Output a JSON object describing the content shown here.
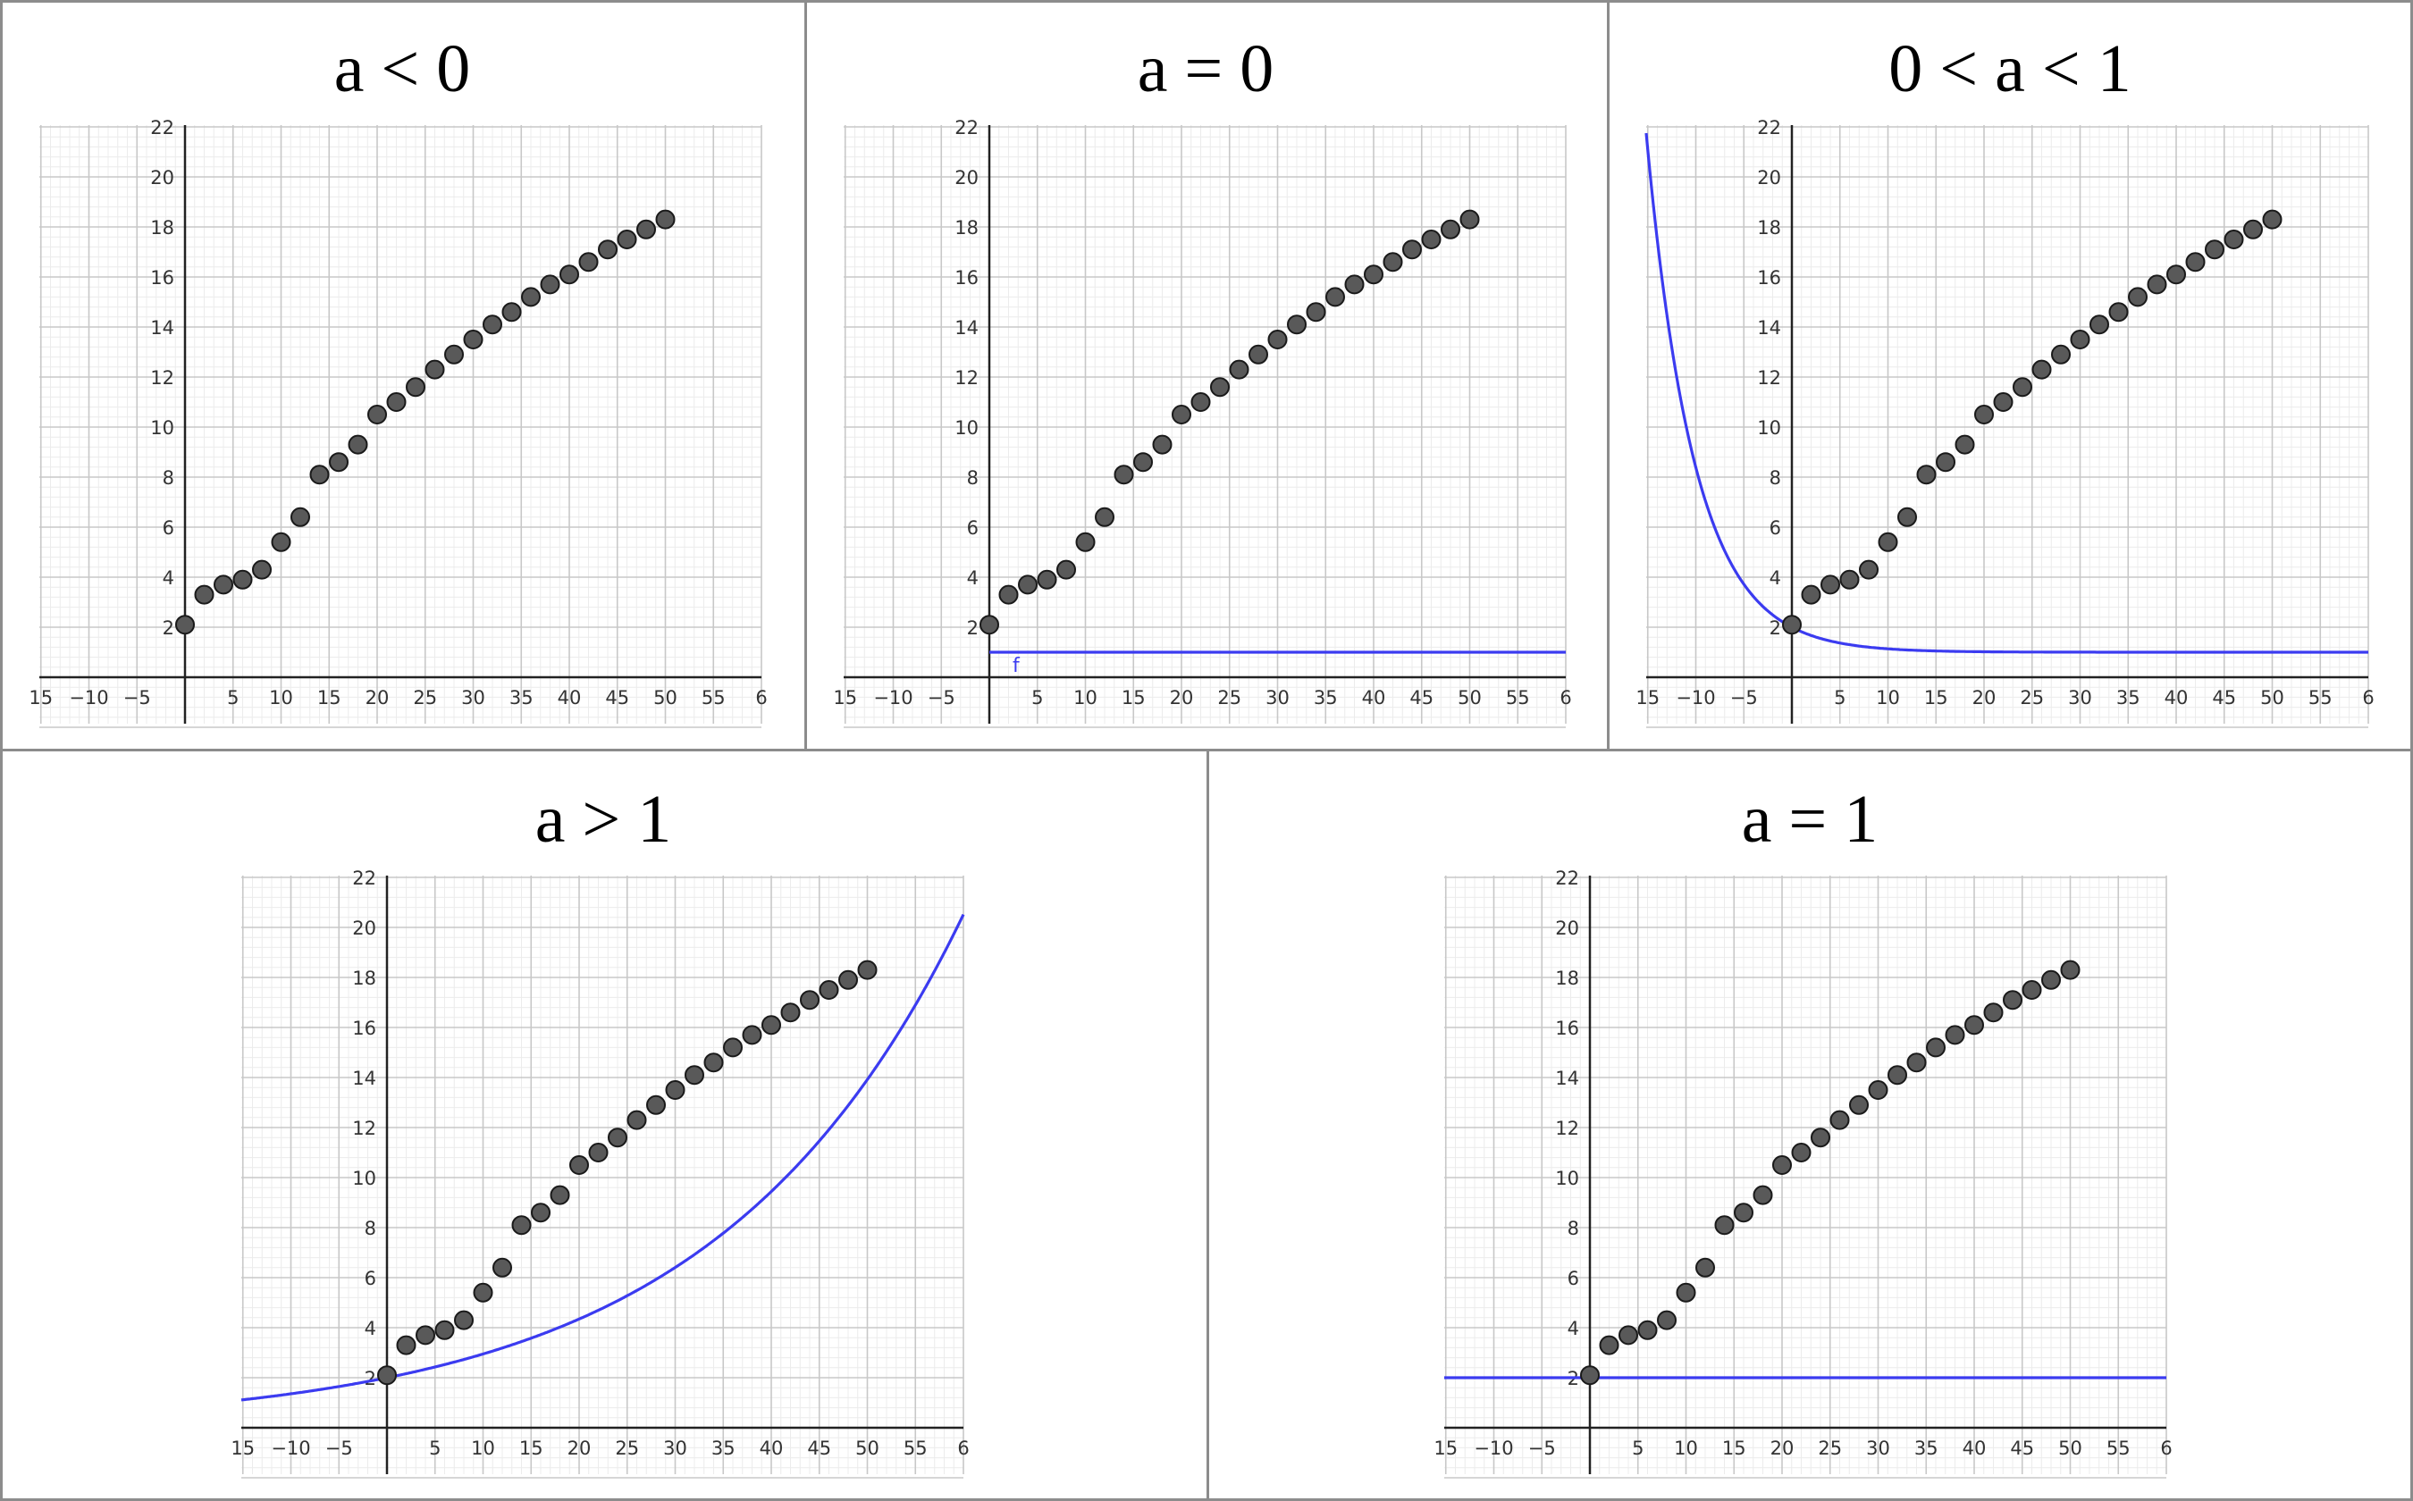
{
  "panels": [
    {
      "title": "a < 0",
      "chart_data": {
        "type": "scatter",
        "title": "a < 0",
        "xlim": [
          -15,
          60
        ],
        "ylim": [
          -2,
          22
        ],
        "x_ticks": [
          "15",
          "−10",
          "−5",
          "5",
          "10",
          "15",
          "20",
          "25",
          "30",
          "35",
          "40",
          "45",
          "50",
          "55",
          "6"
        ],
        "y_ticks": [
          "2",
          "4",
          "6",
          "8",
          "10",
          "12",
          "14",
          "16",
          "18",
          "20",
          "22"
        ],
        "grid": true,
        "points": {
          "x": [
            0,
            2,
            4,
            6,
            8,
            10,
            12,
            14,
            16,
            18,
            20,
            22,
            24,
            26,
            28,
            30,
            32,
            34,
            36,
            38,
            40,
            42,
            44,
            46,
            48,
            50
          ],
          "y": [
            2.1,
            3.3,
            3.7,
            3.9,
            4.3,
            5.4,
            6.4,
            8.1,
            8.6,
            9.3,
            10.5,
            11.0,
            11.6,
            12.3,
            12.9,
            13.5,
            14.1,
            14.6,
            15.2,
            15.7,
            16.1,
            16.6,
            17.1,
            17.5,
            17.9,
            18.3
          ]
        },
        "curve": null
      }
    },
    {
      "title": "a = 0",
      "chart_data": {
        "type": "scatter",
        "title": "a = 0",
        "xlim": [
          -15,
          60
        ],
        "ylim": [
          -2,
          22
        ],
        "x_ticks": [
          "15",
          "−10",
          "−5",
          "5",
          "10",
          "15",
          "20",
          "25",
          "30",
          "35",
          "40",
          "45",
          "50",
          "55",
          "6"
        ],
        "y_ticks": [
          "2",
          "4",
          "6",
          "8",
          "10",
          "12",
          "14",
          "16",
          "18",
          "20",
          "22"
        ],
        "grid": true,
        "points": {
          "x": [
            0,
            2,
            4,
            6,
            8,
            10,
            12,
            14,
            16,
            18,
            20,
            22,
            24,
            26,
            28,
            30,
            32,
            34,
            36,
            38,
            40,
            42,
            44,
            46,
            48,
            50
          ],
          "y": [
            2.1,
            3.3,
            3.7,
            3.9,
            4.3,
            5.4,
            6.4,
            8.1,
            8.6,
            9.3,
            10.5,
            11.0,
            11.6,
            12.3,
            12.9,
            13.5,
            14.1,
            14.6,
            15.2,
            15.7,
            16.1,
            16.6,
            17.1,
            17.5,
            17.9,
            18.3
          ]
        },
        "curve": {
          "kind": "constant",
          "value": 1.0,
          "x_from": 0,
          "label": "f",
          "color": "#3b3bf0"
        }
      }
    },
    {
      "title": "0 < a < 1",
      "chart_data": {
        "type": "scatter",
        "title": "0 < a < 1",
        "xlim": [
          -15,
          60
        ],
        "ylim": [
          -2,
          22
        ],
        "x_ticks": [
          "15",
          "−10",
          "−5",
          "5",
          "10",
          "15",
          "20",
          "25",
          "30",
          "35",
          "40",
          "45",
          "50",
          "55",
          "6"
        ],
        "y_ticks": [
          "2",
          "4",
          "6",
          "8",
          "10",
          "12",
          "14",
          "16",
          "18",
          "20",
          "22"
        ],
        "grid": true,
        "points": {
          "x": [
            0,
            2,
            4,
            6,
            8,
            10,
            12,
            14,
            16,
            18,
            20,
            22,
            24,
            26,
            28,
            30,
            32,
            34,
            36,
            38,
            40,
            42,
            44,
            46,
            48,
            50
          ],
          "y": [
            2.1,
            3.3,
            3.7,
            3.9,
            4.3,
            5.4,
            6.4,
            8.1,
            8.6,
            9.3,
            10.5,
            11.0,
            11.6,
            12.3,
            12.9,
            13.5,
            14.1,
            14.6,
            15.2,
            15.7,
            16.1,
            16.6,
            17.1,
            17.5,
            17.9,
            18.3
          ]
        },
        "curve": {
          "kind": "exponential",
          "asymptote": 1.0,
          "y0": 2.0,
          "rate": -0.2,
          "color": "#3b3bf0"
        }
      }
    },
    {
      "title": "a > 1",
      "chart_data": {
        "type": "scatter",
        "title": "a > 1",
        "xlim": [
          -15,
          60
        ],
        "ylim": [
          -2,
          22
        ],
        "x_ticks": [
          "15",
          "−10",
          "−5",
          "5",
          "10",
          "15",
          "20",
          "25",
          "30",
          "35",
          "40",
          "45",
          "50",
          "55",
          "6"
        ],
        "y_ticks": [
          "2",
          "4",
          "6",
          "8",
          "10",
          "12",
          "14",
          "16",
          "18",
          "20",
          "22"
        ],
        "grid": true,
        "points": {
          "x": [
            0,
            2,
            4,
            6,
            8,
            10,
            12,
            14,
            16,
            18,
            20,
            22,
            24,
            26,
            28,
            30,
            32,
            34,
            36,
            38,
            40,
            42,
            44,
            46,
            48,
            50
          ],
          "y": [
            2.1,
            3.3,
            3.7,
            3.9,
            4.3,
            5.4,
            6.4,
            8.1,
            8.6,
            9.3,
            10.5,
            11.0,
            11.6,
            12.3,
            12.9,
            13.5,
            14.1,
            14.6,
            15.2,
            15.7,
            16.1,
            16.6,
            17.1,
            17.5,
            17.9,
            18.3
          ]
        },
        "curve": {
          "kind": "exponential",
          "asymptote": 0,
          "y0": 2.0,
          "rate": 0.0388,
          "color": "#3b3bf0"
        }
      }
    },
    {
      "title": "a = 1",
      "chart_data": {
        "type": "scatter",
        "title": "a = 1",
        "xlim": [
          -15,
          60
        ],
        "ylim": [
          -2,
          22
        ],
        "x_ticks": [
          "15",
          "−10",
          "−5",
          "5",
          "10",
          "15",
          "20",
          "25",
          "30",
          "35",
          "40",
          "45",
          "50",
          "55",
          "6"
        ],
        "y_ticks": [
          "2",
          "4",
          "6",
          "8",
          "10",
          "12",
          "14",
          "16",
          "18",
          "20",
          "22"
        ],
        "grid": true,
        "points": {
          "x": [
            0,
            2,
            4,
            6,
            8,
            10,
            12,
            14,
            16,
            18,
            20,
            22,
            24,
            26,
            28,
            30,
            32,
            34,
            36,
            38,
            40,
            42,
            44,
            46,
            48,
            50
          ],
          "y": [
            2.1,
            3.3,
            3.7,
            3.9,
            4.3,
            5.4,
            6.4,
            8.1,
            8.6,
            9.3,
            10.5,
            11.0,
            11.6,
            12.3,
            12.9,
            13.5,
            14.1,
            14.6,
            15.2,
            15.7,
            16.1,
            16.6,
            17.1,
            17.5,
            17.9,
            18.3
          ]
        },
        "curve": {
          "kind": "constant",
          "value": 2.0,
          "color": "#3b3bf0"
        }
      }
    }
  ]
}
